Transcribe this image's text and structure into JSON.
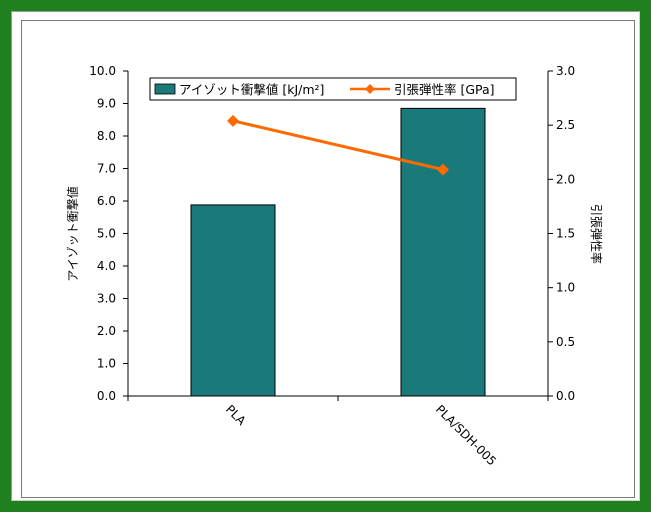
{
  "chart_data": {
    "type": "bar",
    "categories": [
      "PLA",
      "PLA/SDH-005"
    ],
    "series": [
      {
        "name": "アイゾット衝撃値 [kJ/m²]",
        "kind": "bar",
        "axis": "left",
        "color": "#1a7a7a",
        "values": [
          5.88,
          8.85
        ]
      },
      {
        "name": "引張弾性率 [GPa]",
        "kind": "line",
        "axis": "right",
        "color": "#ff6a00",
        "values": [
          2.54,
          2.09
        ]
      }
    ],
    "ylabel": "アイゾット衝撃値",
    "y2label": "引張弾性率",
    "ylim": [
      0,
      10
    ],
    "y2lim": [
      0,
      3
    ],
    "yticks": [
      "0.0",
      "1.0",
      "2.0",
      "3.0",
      "4.0",
      "5.0",
      "6.0",
      "7.0",
      "8.0",
      "9.0",
      "10.0"
    ],
    "y2ticks": [
      "0.0",
      "0.5",
      "1.0",
      "1.5",
      "2.0",
      "2.5",
      "3.0"
    ],
    "legend_position": "top",
    "grid": false
  },
  "colors": {
    "frame": "#208020",
    "bar": "#1a7a7a",
    "line": "#ff6a00"
  }
}
